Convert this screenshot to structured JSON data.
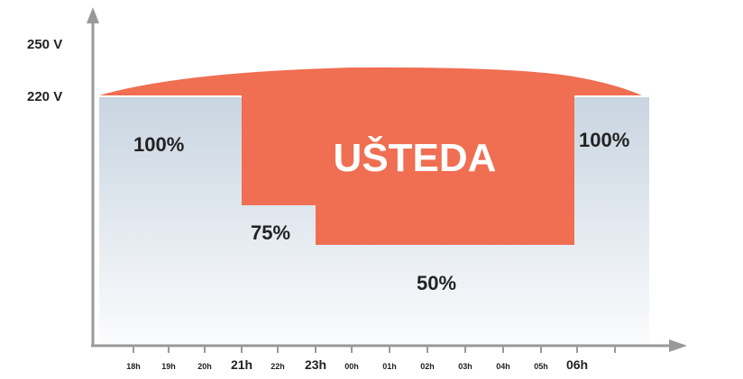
{
  "y_axis": {
    "labels": [
      "250 V",
      "220 V"
    ]
  },
  "x_axis": {
    "labels": [
      "18h",
      "19h",
      "20h",
      "21h",
      "22h",
      "23h",
      "00h",
      "01h",
      "02h",
      "03h",
      "04h",
      "05h",
      "06h"
    ]
  },
  "regions": {
    "levels": [
      "100%",
      "75%",
      "50%",
      "100%"
    ],
    "saving": "UŠTEDA"
  }
}
